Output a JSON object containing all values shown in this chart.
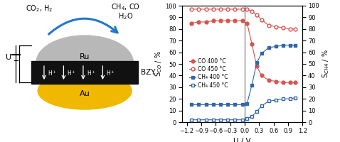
{
  "co_400_x": [
    -1.1,
    -0.95,
    -0.8,
    -0.65,
    -0.5,
    -0.35,
    -0.2,
    -0.05,
    0.05,
    0.15,
    0.25,
    0.35,
    0.5,
    0.65,
    0.8,
    0.95,
    1.05
  ],
  "co_400_y": [
    85,
    86,
    86,
    87,
    87,
    87,
    87,
    87,
    85,
    67,
    48,
    40,
    36,
    35,
    34,
    34,
    34
  ],
  "co_450_x": [
    -1.1,
    -0.95,
    -0.8,
    -0.65,
    -0.5,
    -0.35,
    -0.2,
    -0.05,
    0.05,
    0.15,
    0.25,
    0.35,
    0.5,
    0.65,
    0.8,
    0.95,
    1.05
  ],
  "co_450_y": [
    97,
    97,
    97,
    97,
    97,
    97,
    97,
    97,
    97,
    95,
    92,
    88,
    83,
    82,
    81,
    80,
    80
  ],
  "ch4_400_x": [
    -1.1,
    -0.95,
    -0.8,
    -0.65,
    -0.5,
    -0.35,
    -0.2,
    -0.05,
    0.05,
    0.15,
    0.25,
    0.35,
    0.5,
    0.65,
    0.8,
    0.95,
    1.05
  ],
  "ch4_400_y": [
    15,
    15,
    15,
    15,
    15,
    15,
    15,
    15,
    16,
    32,
    51,
    59,
    64,
    65,
    66,
    66,
    66
  ],
  "ch4_450_x": [
    -1.1,
    -0.95,
    -0.8,
    -0.65,
    -0.5,
    -0.35,
    -0.2,
    -0.05,
    0.05,
    0.15,
    0.25,
    0.35,
    0.5,
    0.65,
    0.8,
    0.95,
    1.05
  ],
  "ch4_450_y": [
    2,
    2,
    2,
    2,
    2,
    2,
    2,
    2,
    3,
    5,
    9,
    14,
    18,
    19,
    20,
    20,
    21
  ],
  "xlim": [
    -1.3,
    1.2
  ],
  "ylim": [
    0,
    100
  ],
  "xlabel": "U / V",
  "ylabel_left": "S$_{CO}$ / %",
  "ylabel_right": "S$_{CH4}$ / %",
  "yticks": [
    0,
    10,
    20,
    30,
    40,
    50,
    60,
    70,
    80,
    90,
    100
  ],
  "xticks": [
    -1.2,
    -0.9,
    -0.6,
    -0.3,
    0.0,
    0.3,
    0.6,
    0.9,
    1.2
  ],
  "vline_x": 0.0,
  "legend_co400": "CO 400 °C",
  "legend_co450": "CO 450 °C",
  "legend_ch4400": "CH₄ 400 °C",
  "legend_ch4450": "CH₄ 450 °C",
  "co_color": "#d9534f",
  "ch4_color": "#3366aa",
  "background": "#ffffff",
  "ru_color": "#b8b8b8",
  "au_color": "#f0b800",
  "bzy_color": "#111111",
  "arrow_color": "#2277cc"
}
